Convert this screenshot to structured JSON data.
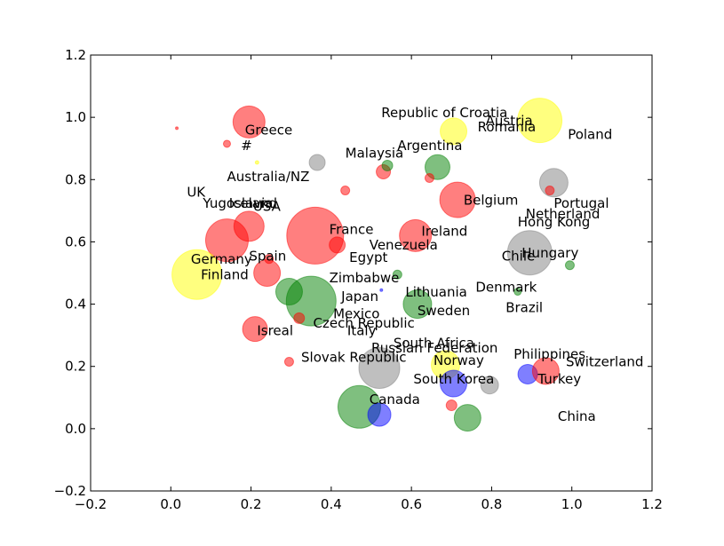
{
  "chart_data": {
    "type": "scatter",
    "title": "",
    "xlabel": "",
    "ylabel": "",
    "xlim": [
      -0.2,
      1.2
    ],
    "ylim": [
      -0.2,
      1.2
    ],
    "xticks": [
      "−0.2",
      "0.0",
      "0.2",
      "0.4",
      "0.6",
      "0.8",
      "1.0",
      "1.2"
    ],
    "yticks": [
      "−0.2",
      "0.0",
      "0.2",
      "0.4",
      "0.6",
      "0.8",
      "1.0",
      "1.2"
    ],
    "grid": false,
    "colors": {
      "red": "#ff0000",
      "green": "#008000",
      "gray": "#808080",
      "yellow": "#ffff00",
      "blue": "#0000ff"
    },
    "points": [
      {
        "x": 0.92,
        "y": 0.99,
        "size": 25,
        "color": "yellow"
      },
      {
        "x": 0.705,
        "y": 0.955,
        "size": 15,
        "color": "yellow"
      },
      {
        "x": 0.195,
        "y": 0.985,
        "size": 18,
        "color": "red"
      },
      {
        "x": 0.955,
        "y": 0.79,
        "size": 16,
        "color": "gray"
      },
      {
        "x": 0.715,
        "y": 0.735,
        "size": 20,
        "color": "red"
      },
      {
        "x": 0.665,
        "y": 0.84,
        "size": 14,
        "color": "green"
      },
      {
        "x": 0.36,
        "y": 0.62,
        "size": 32,
        "color": "red"
      },
      {
        "x": 0.14,
        "y": 0.605,
        "size": 24,
        "color": "red"
      },
      {
        "x": 0.195,
        "y": 0.65,
        "size": 17,
        "color": "red"
      },
      {
        "x": 0.61,
        "y": 0.62,
        "size": 18,
        "color": "red"
      },
      {
        "x": 0.895,
        "y": 0.565,
        "size": 25,
        "color": "gray"
      },
      {
        "x": 0.065,
        "y": 0.495,
        "size": 28,
        "color": "yellow"
      },
      {
        "x": 0.24,
        "y": 0.5,
        "size": 15,
        "color": "red"
      },
      {
        "x": 0.35,
        "y": 0.41,
        "size": 28,
        "color": "green"
      },
      {
        "x": 0.295,
        "y": 0.44,
        "size": 15,
        "color": "green"
      },
      {
        "x": 0.615,
        "y": 0.4,
        "size": 16,
        "color": "green"
      },
      {
        "x": 0.21,
        "y": 0.32,
        "size": 14,
        "color": "red"
      },
      {
        "x": 0.52,
        "y": 0.195,
        "size": 23,
        "color": "gray"
      },
      {
        "x": 0.685,
        "y": 0.205,
        "size": 16,
        "color": "yellow"
      },
      {
        "x": 0.705,
        "y": 0.145,
        "size": 15,
        "color": "blue"
      },
      {
        "x": 0.47,
        "y": 0.07,
        "size": 24,
        "color": "green"
      },
      {
        "x": 0.52,
        "y": 0.045,
        "size": 13,
        "color": "blue"
      },
      {
        "x": 0.74,
        "y": 0.035,
        "size": 15,
        "color": "green"
      },
      {
        "x": 0.795,
        "y": 0.14,
        "size": 10,
        "color": "gray"
      },
      {
        "x": 0.89,
        "y": 0.175,
        "size": 11,
        "color": "blue"
      },
      {
        "x": 0.935,
        "y": 0.185,
        "size": 15,
        "color": "red"
      },
      {
        "x": 0.365,
        "y": 0.855,
        "size": 9,
        "color": "gray"
      },
      {
        "x": 0.53,
        "y": 0.825,
        "size": 8,
        "color": "red"
      },
      {
        "x": 0.54,
        "y": 0.845,
        "size": 6,
        "color": "green"
      },
      {
        "x": 0.415,
        "y": 0.59,
        "size": 9,
        "color": "red"
      },
      {
        "x": 0.435,
        "y": 0.765,
        "size": 5,
        "color": "red"
      },
      {
        "x": 0.645,
        "y": 0.805,
        "size": 5,
        "color": "red"
      },
      {
        "x": 0.945,
        "y": 0.765,
        "size": 5,
        "color": "red"
      },
      {
        "x": 0.995,
        "y": 0.525,
        "size": 5,
        "color": "green"
      },
      {
        "x": 0.565,
        "y": 0.495,
        "size": 5,
        "color": "green"
      },
      {
        "x": 0.865,
        "y": 0.44,
        "size": 4,
        "color": "green"
      },
      {
        "x": 0.32,
        "y": 0.355,
        "size": 6,
        "color": "red"
      },
      {
        "x": 0.295,
        "y": 0.215,
        "size": 5,
        "color": "red"
      },
      {
        "x": 0.7,
        "y": 0.075,
        "size": 6,
        "color": "red"
      },
      {
        "x": 0.14,
        "y": 0.915,
        "size": 4,
        "color": "red"
      },
      {
        "x": 0.245,
        "y": 0.545,
        "size": 5,
        "color": "red"
      },
      {
        "x": 0.015,
        "y": 0.965,
        "size": 1.5,
        "color": "red"
      },
      {
        "x": 0.215,
        "y": 0.855,
        "size": 2,
        "color": "yellow"
      },
      {
        "x": 0.525,
        "y": 0.445,
        "size": 1.5,
        "color": "blue"
      }
    ],
    "labels": [
      {
        "text": "Republic of Croatia",
        "x": 0.525,
        "y": 1.0
      },
      {
        "text": "Austria",
        "x": 0.785,
        "y": 0.975
      },
      {
        "text": "Romania",
        "x": 0.765,
        "y": 0.955
      },
      {
        "text": "Poland",
        "x": 0.99,
        "y": 0.93
      },
      {
        "text": "Greece",
        "x": 0.185,
        "y": 0.945
      },
      {
        "text": "#",
        "x": 0.175,
        "y": 0.895
      },
      {
        "text": "Argentina",
        "x": 0.565,
        "y": 0.895
      },
      {
        "text": "Malaysia",
        "x": 0.435,
        "y": 0.87
      },
      {
        "text": "Australia/NZ",
        "x": 0.14,
        "y": 0.795
      },
      {
        "text": "UK",
        "x": 0.04,
        "y": 0.745
      },
      {
        "text": "Yugoslavia",
        "x": 0.08,
        "y": 0.71
      },
      {
        "text": "Iceland",
        "x": 0.145,
        "y": 0.71
      },
      {
        "text": "USA",
        "x": 0.205,
        "y": 0.7
      },
      {
        "text": "Belgium",
        "x": 0.73,
        "y": 0.72
      },
      {
        "text": "Portugal",
        "x": 0.955,
        "y": 0.71
      },
      {
        "text": "Netherland",
        "x": 0.885,
        "y": 0.675
      },
      {
        "text": "Hong Kong",
        "x": 0.865,
        "y": 0.65
      },
      {
        "text": "France",
        "x": 0.395,
        "y": 0.625
      },
      {
        "text": "Ireland",
        "x": 0.625,
        "y": 0.62
      },
      {
        "text": "Venezuela",
        "x": 0.495,
        "y": 0.575
      },
      {
        "text": "Egypt",
        "x": 0.445,
        "y": 0.535
      },
      {
        "text": "Chile",
        "x": 0.825,
        "y": 0.54
      },
      {
        "text": "Hungary",
        "x": 0.875,
        "y": 0.55
      },
      {
        "text": "Germany",
        "x": 0.05,
        "y": 0.53
      },
      {
        "text": "Spain",
        "x": 0.195,
        "y": 0.54
      },
      {
        "text": "Finland",
        "x": 0.075,
        "y": 0.48
      },
      {
        "text": "Zimbabwe",
        "x": 0.395,
        "y": 0.47
      },
      {
        "text": "Lithuania",
        "x": 0.585,
        "y": 0.425
      },
      {
        "text": "Denmark",
        "x": 0.76,
        "y": 0.44
      },
      {
        "text": "Japan",
        "x": 0.425,
        "y": 0.41
      },
      {
        "text": "Sweden",
        "x": 0.615,
        "y": 0.365
      },
      {
        "text": "Brazil",
        "x": 0.835,
        "y": 0.375
      },
      {
        "text": "Mexico",
        "x": 0.405,
        "y": 0.355
      },
      {
        "text": "Czech Republic",
        "x": 0.355,
        "y": 0.325
      },
      {
        "text": "Isreal",
        "x": 0.215,
        "y": 0.3
      },
      {
        "text": "Italy",
        "x": 0.44,
        "y": 0.3
      },
      {
        "text": "South Africa",
        "x": 0.555,
        "y": 0.26
      },
      {
        "text": "Russian Federation",
        "x": 0.5,
        "y": 0.245
      },
      {
        "text": "Philippines",
        "x": 0.855,
        "y": 0.225
      },
      {
        "text": "Slovak Republic",
        "x": 0.325,
        "y": 0.215
      },
      {
        "text": "Norway",
        "x": 0.655,
        "y": 0.205
      },
      {
        "text": "Switzerland",
        "x": 0.985,
        "y": 0.2
      },
      {
        "text": "South Korea",
        "x": 0.605,
        "y": 0.145
      },
      {
        "text": "Turkey",
        "x": 0.915,
        "y": 0.145
      },
      {
        "text": "Canada",
        "x": 0.495,
        "y": 0.08
      },
      {
        "text": "China",
        "x": 0.965,
        "y": 0.025
      }
    ]
  }
}
